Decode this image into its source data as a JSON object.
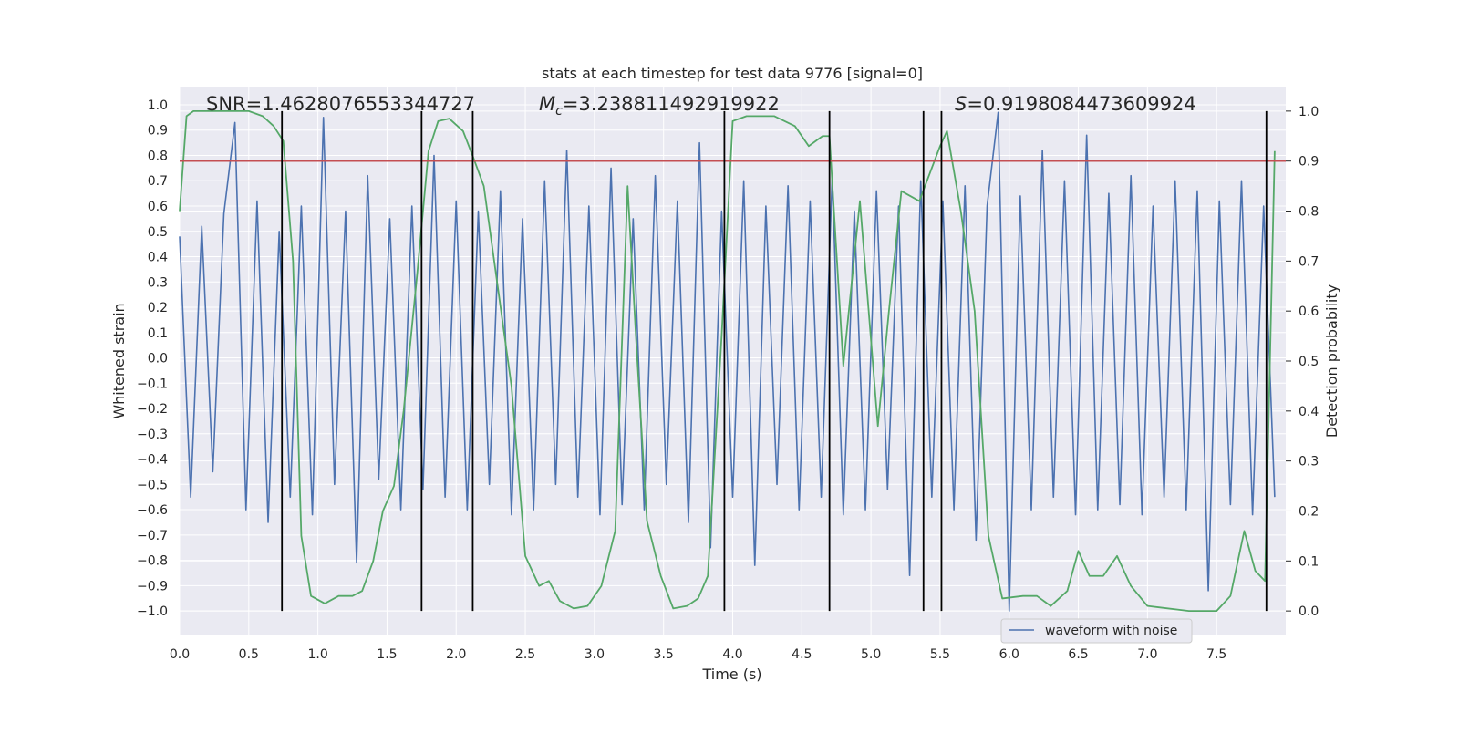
{
  "chart_data": {
    "type": "line",
    "title": "stats at each timestep for test data 9776 [signal=0]",
    "xlabel": "Time (s)",
    "ylabel": "Whitened strain",
    "y2label": "Detection probability",
    "annotations": [
      {
        "text": "SNR=1.4628076553344727"
      },
      {
        "symbol": "M",
        "subscript": "c",
        "text": "=3.238811492919922"
      },
      {
        "symbol": "S",
        "text": "=0.9198084473609924"
      }
    ],
    "xlim": [
      0,
      8
    ],
    "ylim": [
      -1.097,
      1.072
    ],
    "y2lim": [
      -0.049,
      1.049
    ],
    "grid": true,
    "background": "#eaeaf2",
    "xticks": [
      {
        "value": 0,
        "label": "0.0"
      },
      {
        "value": 0.5,
        "label": "0.5"
      },
      {
        "value": 1,
        "label": "1.0"
      },
      {
        "value": 1.5,
        "label": "1.5"
      },
      {
        "value": 2,
        "label": "2.0"
      },
      {
        "value": 2.5,
        "label": "2.5"
      },
      {
        "value": 3,
        "label": "3.0"
      },
      {
        "value": 3.5,
        "label": "3.5"
      },
      {
        "value": 4,
        "label": "4.0"
      },
      {
        "value": 4.5,
        "label": "4.5"
      },
      {
        "value": 5,
        "label": "5.0"
      },
      {
        "value": 5.5,
        "label": "5.5"
      },
      {
        "value": 6,
        "label": "6.0"
      },
      {
        "value": 6.5,
        "label": "6.5"
      },
      {
        "value": 7,
        "label": "7.0"
      },
      {
        "value": 7.5,
        "label": "7.5"
      }
    ],
    "yticks": [
      {
        "value": -1,
        "label": "−1.0"
      },
      {
        "value": -0.9,
        "label": "−0.9"
      },
      {
        "value": -0.8,
        "label": "−0.8"
      },
      {
        "value": -0.7,
        "label": "−0.7"
      },
      {
        "value": -0.6,
        "label": "−0.6"
      },
      {
        "value": -0.5,
        "label": "−0.5"
      },
      {
        "value": -0.4,
        "label": "−0.4"
      },
      {
        "value": -0.3,
        "label": "−0.3"
      },
      {
        "value": -0.2,
        "label": "−0.2"
      },
      {
        "value": -0.1,
        "label": "−0.1"
      },
      {
        "value": 0,
        "label": "0.0"
      },
      {
        "value": 0.1,
        "label": "0.1"
      },
      {
        "value": 0.2,
        "label": "0.2"
      },
      {
        "value": 0.3,
        "label": "0.3"
      },
      {
        "value": 0.4,
        "label": "0.4"
      },
      {
        "value": 0.5,
        "label": "0.5"
      },
      {
        "value": 0.6,
        "label": "0.6"
      },
      {
        "value": 0.7,
        "label": "0.7"
      },
      {
        "value": 0.8,
        "label": "0.8"
      },
      {
        "value": 0.9,
        "label": "0.9"
      },
      {
        "value": 1,
        "label": "1.0"
      }
    ],
    "y2ticks": [
      {
        "value": 0,
        "label": "0.0"
      },
      {
        "value": 0.1,
        "label": "0.1"
      },
      {
        "value": 0.2,
        "label": "0.2"
      },
      {
        "value": 0.3,
        "label": "0.3"
      },
      {
        "value": 0.4,
        "label": "0.4"
      },
      {
        "value": 0.5,
        "label": "0.5"
      },
      {
        "value": 0.6,
        "label": "0.6"
      },
      {
        "value": 0.7,
        "label": "0.7"
      },
      {
        "value": 0.8,
        "label": "0.8"
      },
      {
        "value": 0.9,
        "label": "0.9"
      },
      {
        "value": 1,
        "label": "1.0"
      }
    ],
    "series": [
      {
        "name": "waveform with noise",
        "color": "#4c72b0",
        "x": [
          0,
          0.08,
          0.16,
          0.24,
          0.32,
          0.4,
          0.48,
          0.56,
          0.64,
          0.72,
          0.8,
          0.88,
          0.96,
          1.04,
          1.12,
          1.2,
          1.28,
          1.36,
          1.44,
          1.52,
          1.6,
          1.68,
          1.76,
          1.84,
          1.92,
          2,
          2.08,
          2.16,
          2.24,
          2.32,
          2.4,
          2.48,
          2.56,
          2.64,
          2.72,
          2.8,
          2.88,
          2.96,
          3.04,
          3.12,
          3.2,
          3.28,
          3.36,
          3.44,
          3.52,
          3.6,
          3.68,
          3.76,
          3.84,
          3.92,
          4,
          4.08,
          4.16,
          4.24,
          4.32,
          4.4,
          4.48,
          4.56,
          4.64,
          4.72,
          4.8,
          4.88,
          4.96,
          5.04,
          5.12,
          5.2,
          5.28,
          5.36,
          5.44,
          5.52,
          5.6,
          5.68,
          5.76,
          5.84,
          5.92,
          6,
          6.08,
          6.16,
          6.24,
          6.32,
          6.4,
          6.48,
          6.56,
          6.64,
          6.72,
          6.8,
          6.88,
          6.96,
          7.04,
          7.12,
          7.2,
          7.28,
          7.36,
          7.44,
          7.52,
          7.6,
          7.68,
          7.76,
          7.84,
          7.92
        ],
        "values": [
          0.48,
          -0.55,
          0.52,
          -0.45,
          0.57,
          0.93,
          -0.6,
          0.62,
          -0.65,
          0.5,
          -0.55,
          0.6,
          -0.62,
          0.95,
          -0.5,
          0.58,
          -0.81,
          0.72,
          -0.48,
          0.55,
          -0.6,
          0.6,
          -0.52,
          0.8,
          -0.55,
          0.62,
          -0.6,
          0.58,
          -0.5,
          0.66,
          -0.62,
          0.55,
          -0.6,
          0.7,
          -0.5,
          0.82,
          -0.55,
          0.6,
          -0.62,
          0.75,
          -0.58,
          0.55,
          -0.6,
          0.72,
          -0.5,
          0.62,
          -0.65,
          0.85,
          -0.75,
          0.58,
          -0.55,
          0.7,
          -0.82,
          0.6,
          -0.5,
          0.68,
          -0.6,
          0.62,
          -0.55,
          0.72,
          -0.62,
          0.58,
          -0.6,
          0.66,
          -0.52,
          0.6,
          -0.86,
          0.7,
          -0.55,
          0.62,
          -0.6,
          0.68,
          -0.72,
          0.6,
          0.97,
          -1.0,
          0.64,
          -0.6,
          0.82,
          -0.55,
          0.7,
          -0.62,
          0.88,
          -0.6,
          0.65,
          -0.58,
          0.72,
          -0.62,
          0.6,
          -0.55,
          0.7,
          -0.6,
          0.66,
          -0.92,
          0.62,
          -0.58,
          0.7,
          -0.62,
          0.6,
          -0.55
        ]
      },
      {
        "axis": "y2",
        "color": "#55a868",
        "x": [
          0,
          0.05,
          0.1,
          0.2,
          0.3,
          0.4,
          0.5,
          0.6,
          0.68,
          0.75,
          0.82,
          0.88,
          0.95,
          1.05,
          1.15,
          1.25,
          1.32,
          1.4,
          1.47,
          1.55,
          1.62,
          1.72,
          1.8,
          1.87,
          1.95,
          2.05,
          2.12,
          2.2,
          2.3,
          2.4,
          2.5,
          2.6,
          2.67,
          2.75,
          2.85,
          2.95,
          3.05,
          3.15,
          3.24,
          3.3,
          3.38,
          3.48,
          3.57,
          3.67,
          3.75,
          3.82,
          3.92,
          4,
          4.1,
          4.3,
          4.45,
          4.55,
          4.65,
          4.7,
          4.8,
          4.92,
          5.05,
          5.13,
          5.22,
          5.35,
          5.5,
          5.55,
          5.65,
          5.75,
          5.85,
          5.95,
          6.1,
          6.2,
          6.3,
          6.42,
          6.5,
          6.58,
          6.68,
          6.78,
          6.88,
          7,
          7.3,
          7.5,
          7.6,
          7.7,
          7.78,
          7.85,
          7.92
        ],
        "values": [
          0.8,
          0.99,
          1.0,
          1.0,
          1.0,
          1.0,
          1.0,
          0.99,
          0.97,
          0.94,
          0.7,
          0.15,
          0.03,
          0.015,
          0.03,
          0.03,
          0.04,
          0.1,
          0.2,
          0.25,
          0.4,
          0.68,
          0.92,
          0.98,
          0.985,
          0.96,
          0.91,
          0.85,
          0.65,
          0.45,
          0.11,
          0.05,
          0.06,
          0.02,
          0.005,
          0.01,
          0.05,
          0.16,
          0.85,
          0.55,
          0.18,
          0.07,
          0.005,
          0.01,
          0.025,
          0.07,
          0.55,
          0.98,
          0.99,
          0.99,
          0.97,
          0.93,
          0.95,
          0.95,
          0.49,
          0.82,
          0.37,
          0.6,
          0.84,
          0.82,
          0.93,
          0.96,
          0.8,
          0.6,
          0.15,
          0.025,
          0.03,
          0.03,
          0.01,
          0.04,
          0.12,
          0.07,
          0.07,
          0.11,
          0.05,
          0.01,
          0.0,
          0.0,
          0.03,
          0.16,
          0.08,
          0.06,
          0.92
        ]
      }
    ],
    "threshold": {
      "value": 0.9,
      "axis": "y2",
      "color": "#c44e52"
    },
    "vlines": {
      "color": "#000000",
      "x": [
        0.74,
        1.75,
        2.12,
        3.94,
        4.7,
        5.38,
        5.51,
        7.86
      ]
    },
    "legend": "lower right"
  }
}
